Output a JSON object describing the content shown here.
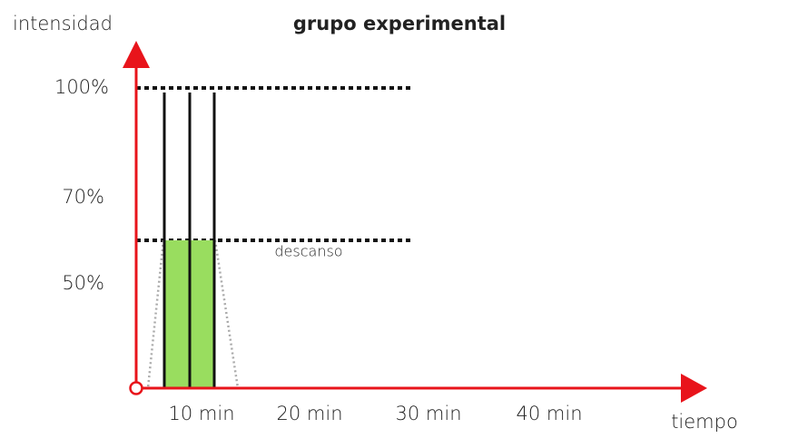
{
  "title": "grupo experimental",
  "y_axis": {
    "label": "intensidad",
    "ticks": [
      "100%",
      "70%",
      "50%"
    ]
  },
  "x_axis": {
    "label": "tiempo",
    "ticks": [
      "10 min",
      "20 min",
      "30 min",
      "40 min"
    ]
  },
  "annotation": "descanso"
}
